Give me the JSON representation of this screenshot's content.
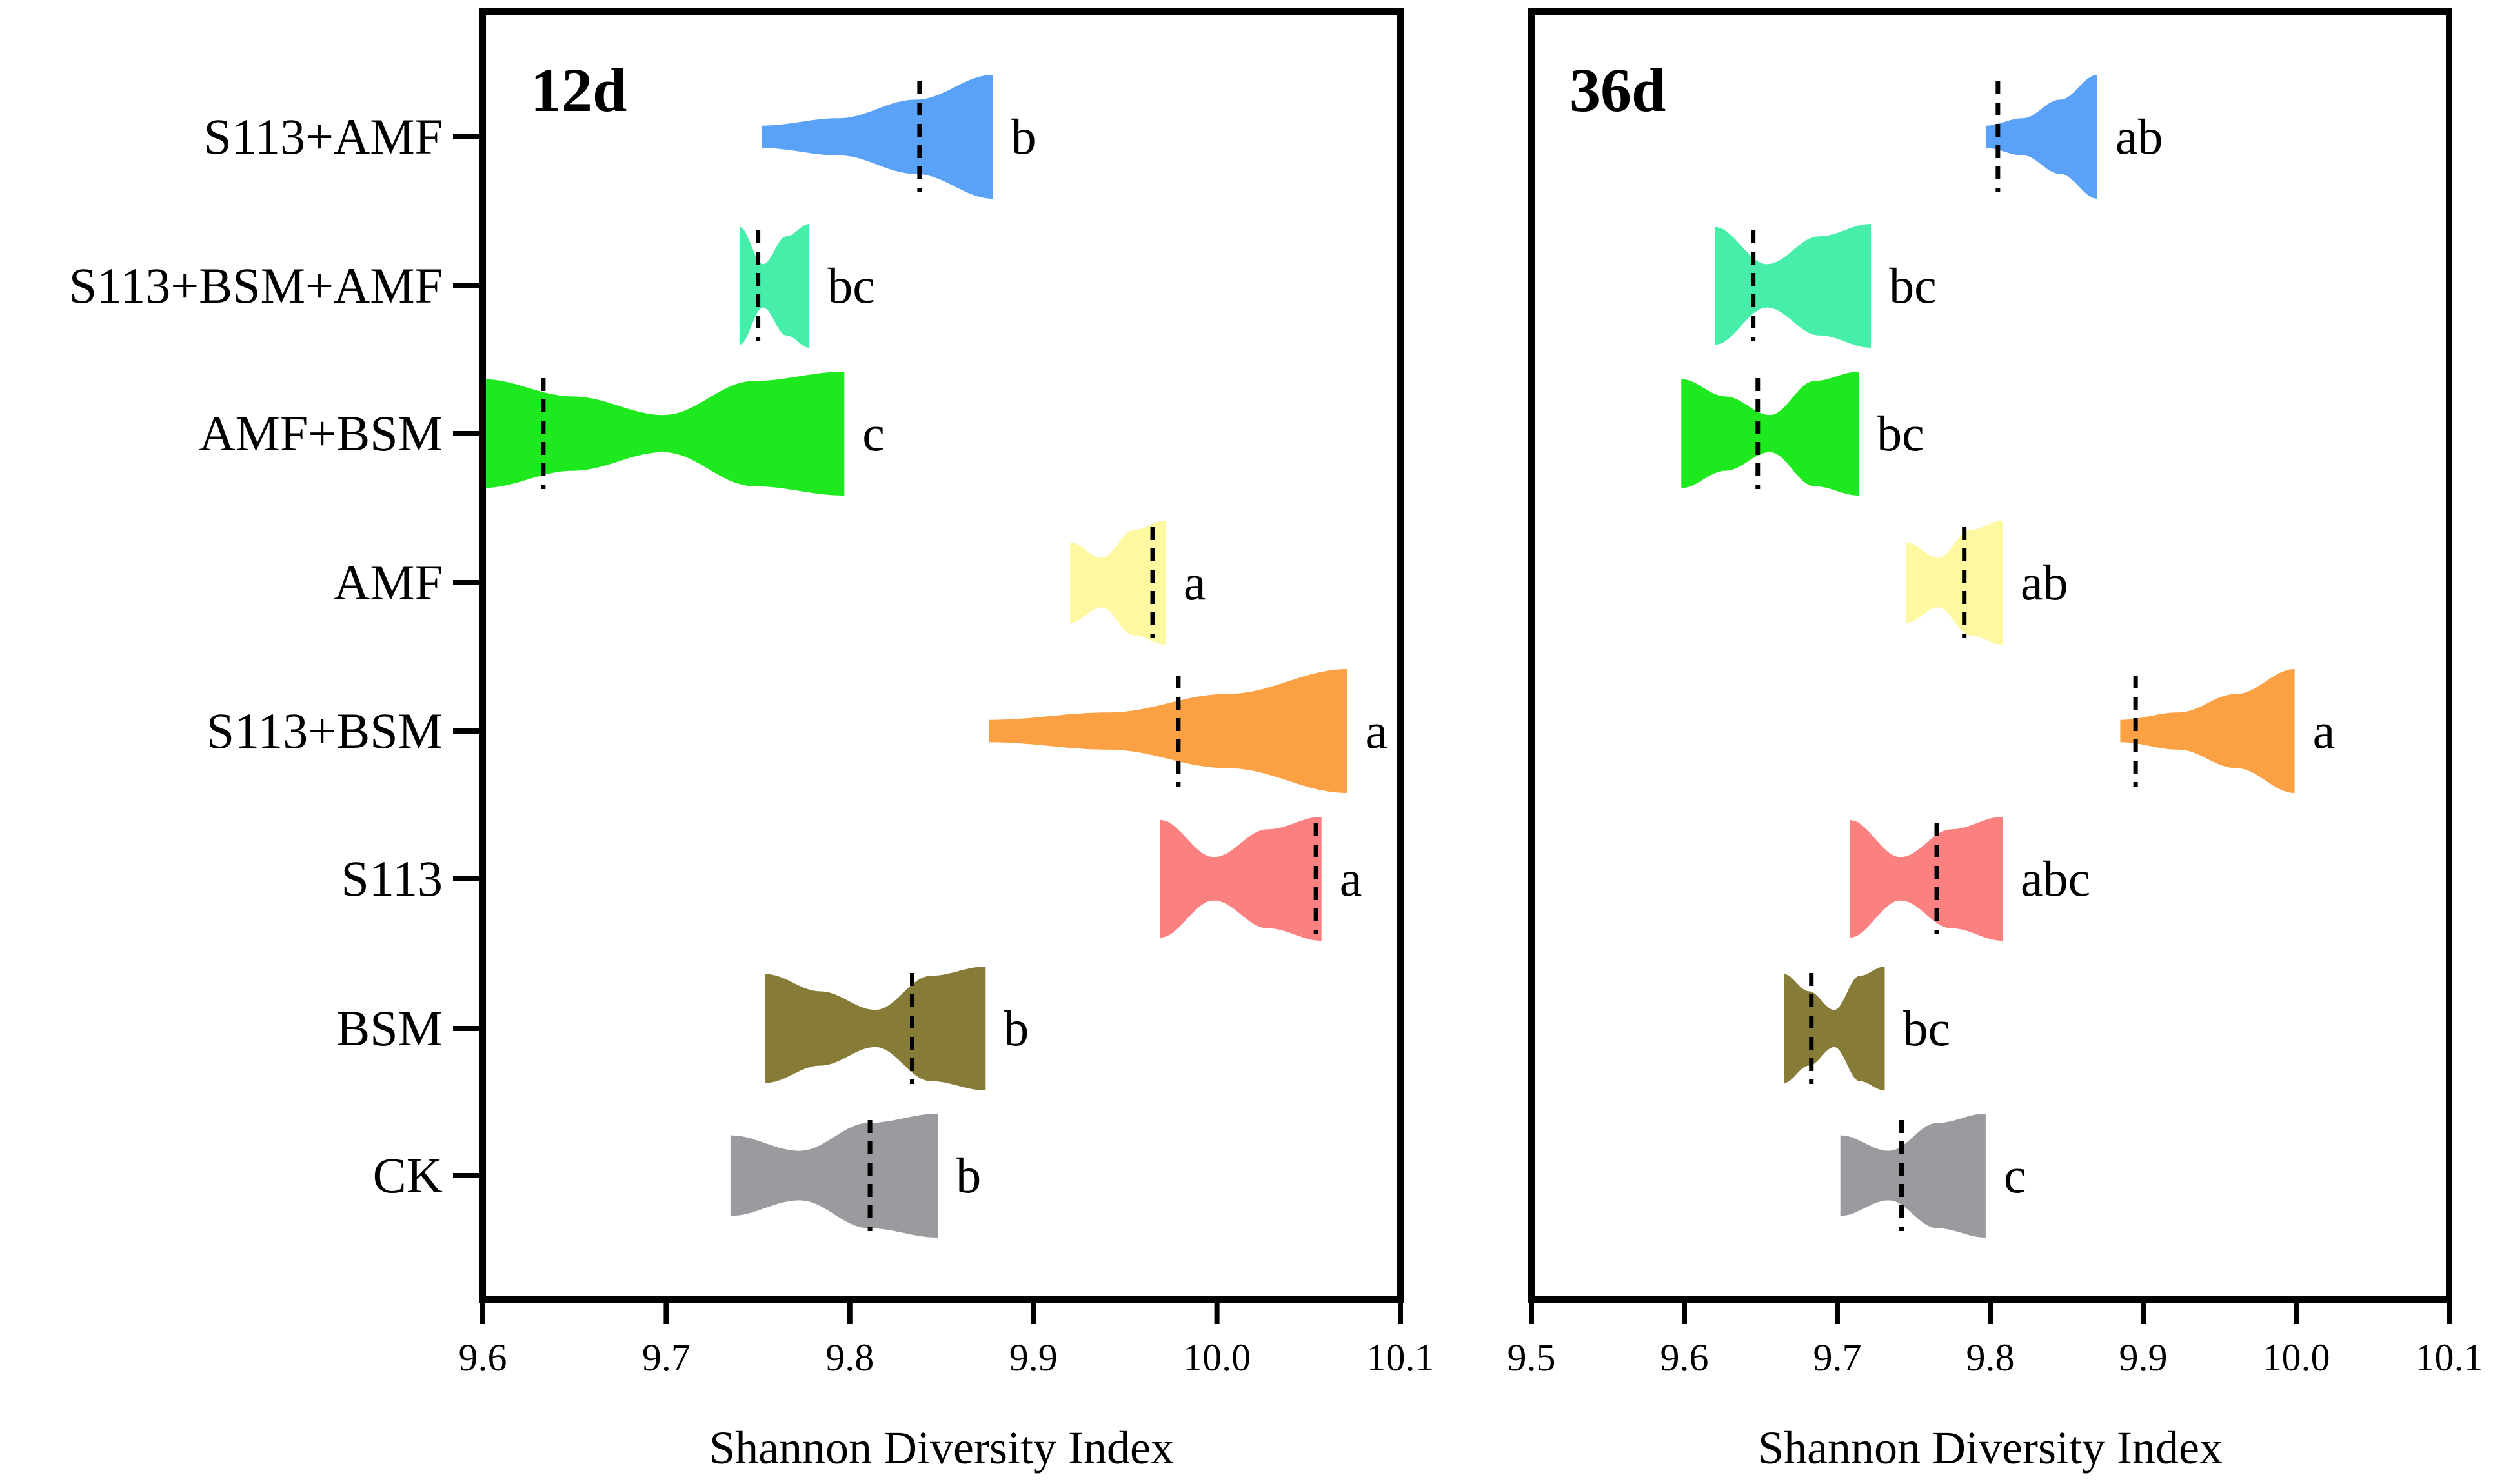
{
  "chart_data": {
    "type": "violin",
    "categories": [
      "S113+AMF",
      "S113+BSM+AMF",
      "AMF+BSM",
      "AMF",
      "S113+BSM",
      "S113",
      "BSM",
      "CK"
    ],
    "colors": {
      "S113+AMF": "#5aa2f8",
      "S113+BSM+AMF": "#46eeaa",
      "AMF+BSM": "#1ee91e",
      "AMF": "#fef9a0",
      "S113+BSM": "#fba144",
      "S113": "#fb8080",
      "BSM": "#877c37",
      "CK": "#9b9b9f"
    },
    "panels": [
      {
        "title": "12d",
        "xlabel": "Shannon Diversity Index",
        "xlim": [
          9.6,
          10.1
        ],
        "xticks": [
          "9.6",
          "9.7",
          "9.8",
          "9.9",
          "10.0",
          "10.1"
        ],
        "series": [
          {
            "name": "S113+AMF",
            "min": 9.752,
            "max": 9.878,
            "median": 9.838,
            "letter": "b"
          },
          {
            "name": "S113+BSM+AMF",
            "min": 9.74,
            "max": 9.778,
            "median": 9.75,
            "letter": "bc"
          },
          {
            "name": "AMF+BSM",
            "min": 9.6,
            "max": 9.797,
            "median": 9.633,
            "letter": "c"
          },
          {
            "name": "AMF",
            "min": 9.92,
            "max": 9.972,
            "median": 9.965,
            "letter": "a"
          },
          {
            "name": "S113+BSM",
            "min": 9.876,
            "max": 10.071,
            "median": 9.979,
            "letter": "a"
          },
          {
            "name": "S113",
            "min": 9.969,
            "max": 10.057,
            "median": 10.054,
            "letter": "a"
          },
          {
            "name": "BSM",
            "min": 9.754,
            "max": 9.874,
            "median": 9.834,
            "letter": "b"
          },
          {
            "name": "CK",
            "min": 9.735,
            "max": 9.848,
            "median": 9.811,
            "letter": "b"
          }
        ]
      },
      {
        "title": "36d",
        "xlabel": "Shannon Diversity Index",
        "xlim": [
          9.5,
          10.1
        ],
        "xticks": [
          "9.5",
          "9.6",
          "9.7",
          "9.8",
          "9.9",
          "10.0",
          "10.1"
        ],
        "series": [
          {
            "name": "S113+AMF",
            "min": 9.797,
            "max": 9.87,
            "median": 9.805,
            "letter": "ab"
          },
          {
            "name": "S113+BSM+AMF",
            "min": 9.62,
            "max": 9.722,
            "median": 9.645,
            "letter": "bc"
          },
          {
            "name": "AMF+BSM",
            "min": 9.598,
            "max": 9.714,
            "median": 9.648,
            "letter": "bc"
          },
          {
            "name": "AMF",
            "min": 9.745,
            "max": 9.808,
            "median": 9.783,
            "letter": "ab"
          },
          {
            "name": "S113+BSM",
            "min": 9.885,
            "max": 9.999,
            "median": 9.895,
            "letter": "a"
          },
          {
            "name": "S113",
            "min": 9.708,
            "max": 9.808,
            "median": 9.765,
            "letter": "abc"
          },
          {
            "name": "BSM",
            "min": 9.665,
            "max": 9.731,
            "median": 9.683,
            "letter": "bc"
          },
          {
            "name": "CK",
            "min": 9.702,
            "max": 9.797,
            "median": 9.742,
            "letter": "c"
          }
        ]
      }
    ]
  }
}
